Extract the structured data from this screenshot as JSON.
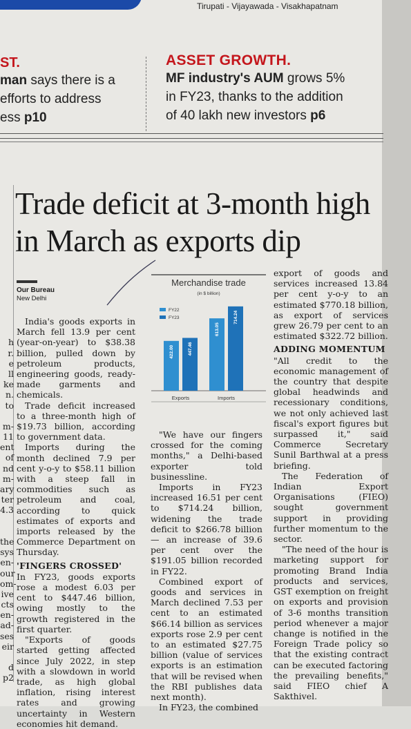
{
  "header": {
    "edition": "Tirupati - Vijayawada - Visakhapatnam"
  },
  "teasers": {
    "left": {
      "tag": "ST.",
      "line1_bold": "man",
      "line1": " says there is a",
      "line2": "efforts to address",
      "line3_pre": "ess ",
      "page": "p10"
    },
    "right": {
      "tag": "ASSET GROWTH.",
      "line1_bold": "MF industry's AUM",
      "line1": " grows 5%",
      "line2": "in FY23, thanks to the addition",
      "line3_pre": "of 40 lakh new investors ",
      "page": "p6"
    }
  },
  "article": {
    "headline": "Trade deficit at 3-month high in March as exports dip",
    "byline": {
      "name": "Our Bureau",
      "city": "New Delhi"
    },
    "col1": [
      "India's goods exports in March fell 13.9 per cent (year-on-year) to $38.38 billion, pulled down by petroleum products, engineering goods, ready-made garments and chemicals.",
      "Trade deficit increased to a three-month high of $19.73 billion, according to government data.",
      "Imports during the month declined 7.9 per cent y-o-y to $58.11 billion with a steep fall in commodities such as petroleum and coal, according to quick estimates of exports and imports released by the Commerce Department on Thursday."
    ],
    "col1_subhead": "'FINGERS CROSSED'",
    "col1b": [
      "In FY23, goods exports rose a modest 6.03 per cent to $447.46 billion, owing mostly to the growth registered in the first quarter.",
      "\"Exports of goods started getting affected since July 2022, in step with a slowdown in world trade, as high global inflation, rising interest rates and growing uncertainty in Western economies hit demand."
    ],
    "col2": [
      "\"We have our fingers crossed for the coming months,\" a Delhi-based exporter told businessline.",
      "Imports in FY23 increased 16.51 per cent to $714.24 billion, widening the trade deficit to $266.78 billion — an increase of 39.6 per cent over the $191.05 billion recorded in FY22.",
      "Combined export of goods and services in March declined 7.53 per cent to an estimated $66.14 billion as services exports rose 2.9 per cent to an estimated $27.75 billion (value of services exports is an estimation that will be revised when the RBI publishes data next month).",
      "In FY23, the combined"
    ],
    "col3_top": "export of goods and services increased 13.84 per cent y-o-y to an estimated $770.18 billion, as export of services grew 26.79 per cent to an estimated $322.72 billion.",
    "col3_subhead": "ADDING MOMENTUM",
    "col3": [
      "\"All credit to the economic management of the country that despite global headwinds and recessionary conditions, we not only achieved last fiscal's export figures but surpassed it,\" said Commerce Secretary Sunil Barthwal at a press briefing.",
      "The Federation of Indian Export Organisations (FIEO) sought government support in providing further momentum to the sector.",
      "\"The need of the hour is marketing support for promoting Brand India products and services, GST exemption on freight on exports and provision of 3-6 months transition period whenever a major change is notified in the Foreign Trade policy so that the existing contract can be executed factoring the prevailing benefits,\" said FIEO chief A Sakthivel."
    ],
    "left_cut_fragments": [
      "",
      "",
      "h",
      "r.",
      "e",
      "ll",
      "ke",
      "n.",
      "to",
      "",
      "m-",
      "11",
      "ent",
      "of",
      "nd",
      "m-",
      "ary",
      "ter",
      "4.3",
      "",
      "",
      "the",
      "sys",
      "en-",
      "our",
      "om-",
      "ive",
      "cts",
      "en-",
      "ad-",
      "ses",
      "eir",
      "",
      "d p2"
    ]
  },
  "chart_data": {
    "type": "bar",
    "title": "Merchandise trade",
    "subtitle": "(in $ billion)",
    "categories": [
      "Exports",
      "Imports"
    ],
    "series": [
      {
        "name": "FY22",
        "values": [
          422.0,
          613.05
        ]
      },
      {
        "name": "FY23",
        "values": [
          447.46,
          714.24
        ]
      }
    ],
    "data_labels": [
      [
        "422.00",
        "447.46"
      ],
      [
        "613.05",
        "714.24"
      ]
    ],
    "colors": {
      "FY22": "#2f8fd0",
      "FY23": "#1f72b8"
    },
    "ylim": [
      0,
      760
    ],
    "grid": false,
    "legend": "top-left"
  }
}
